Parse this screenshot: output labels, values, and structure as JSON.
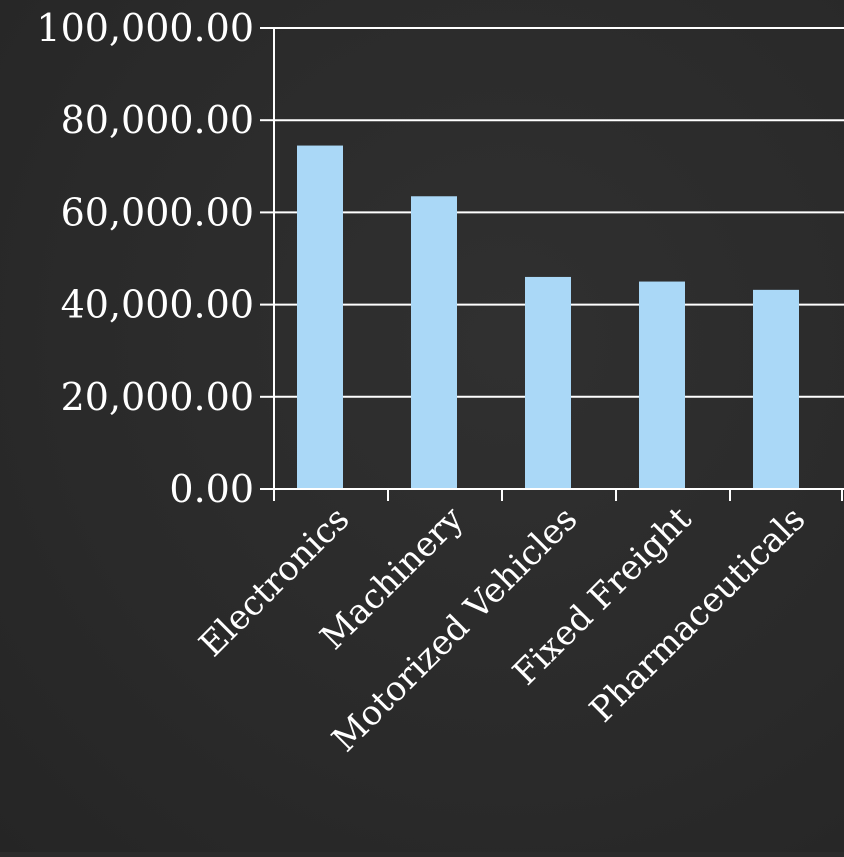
{
  "chart_data": {
    "type": "bar",
    "title": "",
    "xlabel": "",
    "ylabel": "",
    "categories": [
      "Electronics",
      "Machinery",
      "Motorized Vehicles",
      "Fixed Freight",
      "Pharmaceuticals"
    ],
    "values": [
      74500,
      63500,
      46000,
      45000,
      43200
    ],
    "ylim": [
      0,
      100000
    ],
    "yticks": [
      0,
      20000,
      40000,
      60000,
      80000,
      100000
    ],
    "ytick_labels": [
      "0.00",
      "20,000.00",
      "40,000.00",
      "60,000.00",
      "80,000.00",
      "100,000.00"
    ],
    "grid": true,
    "legend": "none",
    "colors": {
      "bar": "#aad8f7",
      "axis": "#ffffff",
      "grid": "#ffffff",
      "text": "#ffffff",
      "background": "#2b2b2b"
    }
  }
}
